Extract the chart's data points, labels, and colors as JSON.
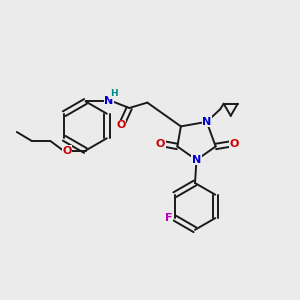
{
  "bg_color": "#ebebeb",
  "bond_color": "#1a1a1a",
  "bond_lw": 1.4,
  "atom_colors": {
    "N": "#0000cc",
    "O": "#cc0000",
    "F": "#bb00bb",
    "H": "#008888",
    "C": "#1a1a1a"
  },
  "font_size": 8.0,
  "xlim": [
    0,
    10
  ],
  "ylim": [
    0,
    10
  ]
}
